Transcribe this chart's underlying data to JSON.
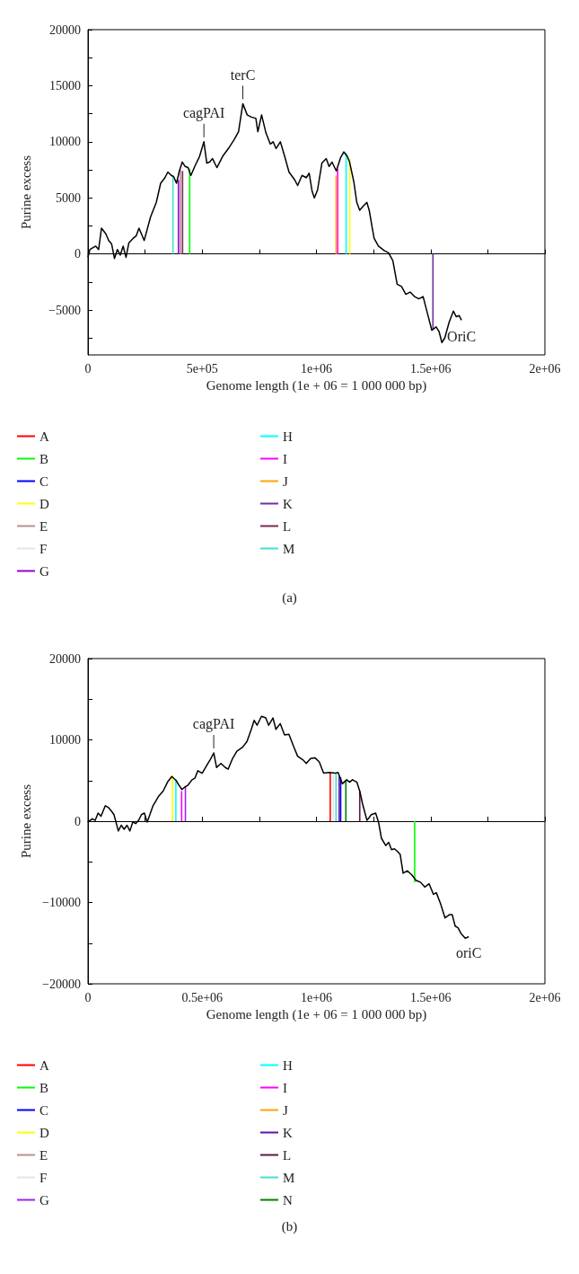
{
  "chart_data": [
    {
      "type": "line",
      "xlabel": "Genome length (1e + 06 = 1 000 000 bp)",
      "ylabel": "Purine excess",
      "xlim": [
        0,
        2000000
      ],
      "ylim": [
        -9000,
        20000
      ],
      "xticks": [
        0,
        {
          "value": 250000,
          "label": null
        },
        {
          "value": 500000,
          "label": "5e+05"
        },
        {
          "value": 750000,
          "label": null
        },
        {
          "value": 1000000,
          "label": "1e+06"
        },
        {
          "value": 1250000,
          "label": null
        },
        {
          "value": 1500000,
          "label": "1.5e+06"
        },
        {
          "value": 1750000,
          "label": null
        },
        {
          "value": 2000000,
          "label": "2e+06"
        }
      ],
      "yticks": [
        {
          "value": -7500,
          "label": null
        },
        {
          "value": -5000,
          "label": "−5000"
        },
        {
          "value": -2500,
          "label": null
        },
        0,
        {
          "value": 2500,
          "label": null
        },
        5000,
        {
          "value": 7500,
          "label": null
        },
        10000,
        {
          "value": 12500,
          "label": null
        },
        15000,
        {
          "value": 17500,
          "label": null
        },
        20000
      ],
      "legend": "bottom",
      "annotations": [
        {
          "text": "cagPAI",
          "x": 507500,
          "y": 10000
        },
        {
          "text": "terC",
          "x": 677900,
          "y": 13400
        },
        "OriC",
        "(a)"
      ],
      "series": [
        {
          "type": "bar",
          "name": "A",
          "color": "#ff0000"
        },
        {
          "type": "bar",
          "name": "B",
          "color": "#00ff00",
          "x": [
            445000
          ],
          "values": [
            7600
          ]
        },
        {
          "type": "bar",
          "name": "C",
          "color": "#0000ff"
        },
        {
          "type": "bar",
          "name": "D",
          "color": "#ffff00",
          "x": [
            1146000
          ],
          "values": [
            8500
          ]
        },
        {
          "type": "bar",
          "name": "E",
          "color": "#bc8f8f",
          "x": [
            405000
          ],
          "values": [
            7500
          ]
        },
        {
          "type": "bar",
          "name": "F",
          "color": "#e5e5e5"
        },
        {
          "type": "bar",
          "name": "G",
          "color": "#9400d3",
          "x": [
            396000
          ],
          "values": [
            6600
          ]
        },
        {
          "type": "bar",
          "name": "H",
          "color": "#00ffff",
          "x": [
            1130000
          ],
          "values": [
            9000
          ]
        },
        {
          "type": "bar",
          "name": "I",
          "color": "#ff00ff",
          "x": [
            1093000
          ],
          "values": [
            7600
          ]
        },
        {
          "type": "bar",
          "name": "J",
          "color": "#ffa500",
          "x": [
            1086000
          ],
          "values": [
            7000
          ]
        },
        {
          "type": "bar",
          "name": "K",
          "color": "#7030a0",
          "x": [
            1510000
          ],
          "values": [
            -6700
          ]
        },
        {
          "type": "bar",
          "name": "L",
          "color": "#7a2a5a",
          "x": [
            414000
          ],
          "values": [
            7400
          ]
        },
        {
          "type": "bar",
          "name": "M",
          "color": "#40e0d0",
          "x": [
            372000
          ],
          "values": [
            6900
          ]
        },
        {
          "color": "#000000",
          "x": [
            0,
            8712,
            33970,
            46590,
            59210,
            78150,
            90790,
            103400,
            116000,
            128700,
            141300,
            153900,
            166500,
            179200,
            198100,
            210700,
            223300,
            236000,
            246100,
            273900,
            299100,
            318100,
            337000,
            349600,
            364800,
            374900,
            387500,
            400100,
            412800,
            425400,
            438000,
            450600,
            469600,
            488500,
            507500,
            520100,
            532700,
            545300,
            564300,
            589500,
            614800,
            640000,
            659000,
            677900,
            696900,
            715800,
            734700,
            743600,
            760000,
            778900,
            797900,
            810500,
            823100,
            842100,
            861000,
            879900,
            905200,
            917800,
            936800,
            955700,
            968300,
            981000,
            991000,
            1004900,
            1023900,
            1042800,
            1055500,
            1068100,
            1087000,
            1106000,
            1119800,
            1135000,
            1145100,
            1164000,
            1176600,
            1189300,
            1201900,
            1220800,
            1230900,
            1252400,
            1271300,
            1296600,
            1315500,
            1334500,
            1353400,
            1372400,
            1391300,
            1410200,
            1429200,
            1448100,
            1467000,
            1486000,
            1504900,
            1523800,
            1536500,
            1549100,
            1561800,
            1580700,
            1599600,
            1612300,
            1624900,
            1635000
          ],
          "values": [
            -300,
            400,
            700,
            400,
            2300,
            1800,
            1200,
            900,
            -400,
            400,
            -100,
            700,
            -300,
            1000,
            1400,
            1600,
            2300,
            1700,
            1200,
            3300,
            4600,
            6300,
            6800,
            7300,
            7000,
            6900,
            6300,
            7400,
            8200,
            7800,
            7700,
            7000,
            7900,
            8700,
            10000,
            8100,
            8200,
            8500,
            7700,
            8700,
            9400,
            10200,
            10900,
            13400,
            12400,
            12200,
            12100,
            10900,
            12400,
            10800,
            9800,
            10000,
            9400,
            10000,
            8700,
            7300,
            6600,
            6100,
            7000,
            6800,
            7200,
            5600,
            5000,
            5700,
            8100,
            8500,
            7800,
            8200,
            7400,
            8600,
            9100,
            8700,
            8200,
            6400,
            4600,
            3900,
            4200,
            4600,
            3900,
            1400,
            700,
            300,
            100,
            -600,
            -2700,
            -2900,
            -3600,
            -3400,
            -3800,
            -4000,
            -3800,
            -5300,
            -6800,
            -6500,
            -6900,
            -7900,
            -7500,
            -6100,
            -5100,
            -5600,
            -5500,
            -5900
          ]
        }
      ]
    },
    {
      "type": "line",
      "xlabel": "Genome length (1e + 06 = 1 000 000 bp)",
      "ylabel": "Purine excess",
      "xlim": [
        0,
        2000000
      ],
      "ylim": [
        -20000,
        20000
      ],
      "xticks": [
        0,
        {
          "value": 250000,
          "label": null
        },
        {
          "value": 500000,
          "label": "0.5e+06"
        },
        {
          "value": 750000,
          "label": null
        },
        {
          "value": 1000000,
          "label": "1e+06"
        },
        {
          "value": 1250000,
          "label": null
        },
        {
          "value": 1500000,
          "label": "1.5e+06"
        },
        {
          "value": 1750000,
          "label": null
        },
        {
          "value": 2000000,
          "label": "2e+06"
        }
      ],
      "yticks": [
        {
          "value": -20000,
          "label": "−20000"
        },
        {
          "value": -15000,
          "label": null
        },
        {
          "value": -10000,
          "label": "−10000"
        },
        {
          "value": -5000,
          "label": null
        },
        0,
        {
          "value": 5000,
          "label": null
        },
        10000,
        {
          "value": 15000,
          "label": null
        },
        20000
      ],
      "legend": "bottom",
      "annotations": [
        {
          "text": "cagPAI",
          "x": 550500,
          "y": 8400
        },
        "oriC",
        "(b)"
      ],
      "series": [
        {
          "type": "bar",
          "name": "A",
          "color": "#ff0000",
          "x": [
            1060500
          ],
          "values": [
            6000
          ]
        },
        {
          "type": "bar",
          "name": "B",
          "color": "#00ff00",
          "x": [
            1430000
          ],
          "values": [
            -7500
          ]
        },
        {
          "type": "bar",
          "name": "C",
          "color": "#0000ff",
          "x": [
            1106000
          ],
          "values": [
            5400
          ]
        },
        {
          "type": "bar",
          "name": "D",
          "color": "#ffff00",
          "x": [
            369500
          ],
          "values": [
            5600
          ]
        },
        {
          "type": "bar",
          "name": "E",
          "color": "#bc8f8f"
        },
        {
          "type": "bar",
          "name": "F",
          "color": "#e5e5e5",
          "x": [
            1073100
          ],
          "values": [
            5900
          ]
        },
        {
          "type": "bar",
          "name": "G",
          "color": "#a020f0",
          "x": [
            426500
          ],
          "values": [
            4200
          ]
        },
        {
          "type": "bar",
          "name": "H",
          "color": "#00ffff",
          "x": [
            384700
          ],
          "values": [
            5100
          ]
        },
        {
          "type": "bar",
          "name": "I",
          "color": "#ff00ff",
          "x": [
            410000
          ],
          "values": [
            3700
          ]
        },
        {
          "type": "bar",
          "name": "J",
          "color": "#ffa500"
        },
        {
          "type": "bar",
          "name": "K",
          "color": "#6a0dad",
          "x": [
            1099700
          ],
          "values": [
            5500
          ]
        },
        {
          "type": "bar",
          "name": "L",
          "color": "#5e1a45",
          "x": [
            1189600
          ],
          "values": [
            3700
          ]
        },
        {
          "type": "bar",
          "name": "M",
          "color": "#40e0d0",
          "x": [
            1085800
          ],
          "values": [
            6000
          ]
        },
        {
          "type": "bar",
          "name": "N",
          "color": "#008000",
          "x": [
            1128800
          ],
          "values": [
            5000
          ]
        },
        {
          "color": "#000000",
          "x": [
            0,
            18980,
            31630,
            44290,
            56950,
            75930,
            88590,
            101200,
            113900,
            132900,
            145500,
            158200,
            170800,
            183500,
            196200,
            208800,
            221500,
            234100,
            246800,
            259400,
            284700,
            310100,
            329000,
            348000,
            367000,
            386000,
            398600,
            411300,
            423900,
            436600,
            455600,
            468200,
            480900,
            499900,
            518800,
            537800,
            550500,
            563100,
            582100,
            601100,
            613800,
            632800,
            651700,
            677000,
            696000,
            715000,
            727600,
            740300,
            759300,
            778300,
            790900,
            809900,
            822600,
            841600,
            860600,
            879600,
            898500,
            917500,
            942800,
            955500,
            974400,
            993400,
            1012400,
            1031400,
            1056700,
            1082000,
            1094700,
            1113600,
            1132600,
            1145300,
            1157900,
            1176900,
            1189600,
            1202200,
            1221200,
            1240200,
            1259200,
            1271800,
            1284500,
            1303500,
            1316100,
            1328800,
            1341400,
            1354100,
            1366700,
            1379400,
            1398400,
            1417300,
            1436300,
            1455300,
            1474300,
            1493300,
            1512300,
            1524900,
            1543900,
            1562900,
            1581900,
            1594500,
            1607200,
            1619800,
            1632500,
            1651500,
            1666700
          ],
          "values": [
            -100,
            300,
            100,
            1000,
            600,
            1900,
            1700,
            1300,
            800,
            -1200,
            -500,
            -1000,
            -500,
            -1200,
            -100,
            -300,
            100,
            800,
            1000,
            -100,
            1900,
            3100,
            3700,
            4800,
            5500,
            5000,
            4400,
            3900,
            4200,
            4400,
            5100,
            5300,
            6200,
            5900,
            6800,
            7700,
            8400,
            6600,
            7100,
            6600,
            6400,
            7700,
            8600,
            9100,
            9800,
            11300,
            12400,
            11800,
            12900,
            12700,
            11800,
            12700,
            11300,
            12000,
            10600,
            10700,
            9300,
            8000,
            7500,
            7100,
            7700,
            7800,
            7300,
            5900,
            6000,
            5900,
            6000,
            4600,
            5100,
            4800,
            5100,
            4800,
            3700,
            2100,
            100,
            800,
            1000,
            -100,
            -2100,
            -3000,
            -2600,
            -3500,
            -3400,
            -3700,
            -4100,
            -6400,
            -6100,
            -6600,
            -7300,
            -7500,
            -8100,
            -7700,
            -9000,
            -8800,
            -10200,
            -11900,
            -11500,
            -11500,
            -12900,
            -13100,
            -13800,
            -14400,
            -14200
          ]
        }
      ]
    }
  ]
}
